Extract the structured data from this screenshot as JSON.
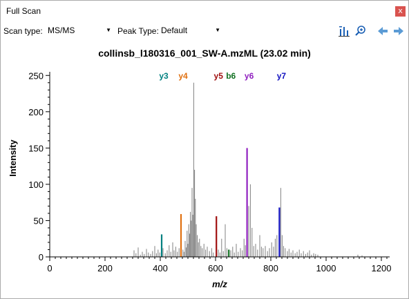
{
  "window": {
    "title": "Full Scan",
    "close_label": "x"
  },
  "toolbar": {
    "scan_type_label": "Scan type:",
    "scan_type_value": "MS/MS",
    "peak_type_label": "Peak Type:",
    "peak_type_value": "Default",
    "icons": [
      "bar-chart-icon",
      "zoom-icon",
      "back-arrow-icon",
      "forward-arrow-icon"
    ]
  },
  "chart_data": {
    "type": "bar",
    "title": "collinsb_l180316_001_SW-A.mzML  (23.02 min)",
    "xlabel": "m/z",
    "ylabel": "Intensity",
    "xlim": [
      0,
      1230
    ],
    "ylim": [
      0,
      255
    ],
    "x_ticks": [
      0,
      200,
      400,
      600,
      800,
      1000,
      1200
    ],
    "y_ticks": [
      0,
      50,
      100,
      150,
      200,
      250
    ],
    "grid": false,
    "colors": {
      "unannotated": "#808080",
      "axis": "#000000",
      "title": "#000000"
    },
    "annotated_peaks": [
      {
        "label": "y3",
        "mz": 405,
        "intensity": 31,
        "color": "#008080"
      },
      {
        "label": "y4",
        "mz": 475,
        "intensity": 59,
        "color": "#e07010"
      },
      {
        "label": "y5",
        "mz": 603,
        "intensity": 56,
        "color": "#a01010"
      },
      {
        "label": "b6",
        "mz": 648,
        "intensity": 10,
        "color": "#107020"
      },
      {
        "label": "y6",
        "mz": 714,
        "intensity": 150,
        "color": "#9020c0"
      },
      {
        "label": "y7",
        "mz": 831,
        "intensity": 68,
        "color": "#1010c0"
      }
    ],
    "peaks": [
      [
        305,
        9
      ],
      [
        312,
        5
      ],
      [
        320,
        13
      ],
      [
        328,
        3
      ],
      [
        335,
        7
      ],
      [
        342,
        4
      ],
      [
        350,
        11
      ],
      [
        357,
        6
      ],
      [
        365,
        4
      ],
      [
        372,
        8
      ],
      [
        380,
        15
      ],
      [
        386,
        5
      ],
      [
        392,
        10
      ],
      [
        398,
        6
      ],
      [
        410,
        12
      ],
      [
        418,
        5
      ],
      [
        425,
        9
      ],
      [
        432,
        16
      ],
      [
        438,
        7
      ],
      [
        445,
        20
      ],
      [
        450,
        9
      ],
      [
        456,
        14
      ],
      [
        462,
        7
      ],
      [
        468,
        12
      ],
      [
        482,
        10
      ],
      [
        486,
        7
      ],
      [
        490,
        22
      ],
      [
        494,
        13
      ],
      [
        497,
        36
      ],
      [
        500,
        18
      ],
      [
        503,
        45
      ],
      [
        506,
        32
      ],
      [
        509,
        62
      ],
      [
        512,
        50
      ],
      [
        515,
        95
      ],
      [
        518,
        58
      ],
      [
        521,
        240
      ],
      [
        524,
        120
      ],
      [
        527,
        80
      ],
      [
        530,
        45
      ],
      [
        534,
        30
      ],
      [
        538,
        20
      ],
      [
        542,
        25
      ],
      [
        547,
        15
      ],
      [
        552,
        12
      ],
      [
        558,
        18
      ],
      [
        564,
        10
      ],
      [
        570,
        14
      ],
      [
        578,
        8
      ],
      [
        586,
        12
      ],
      [
        592,
        6
      ],
      [
        610,
        10
      ],
      [
        616,
        6
      ],
      [
        622,
        25
      ],
      [
        628,
        8
      ],
      [
        635,
        45
      ],
      [
        641,
        12
      ],
      [
        655,
        9
      ],
      [
        662,
        14
      ],
      [
        668,
        6
      ],
      [
        675,
        18
      ],
      [
        682,
        7
      ],
      [
        690,
        12
      ],
      [
        697,
        9
      ],
      [
        703,
        25
      ],
      [
        708,
        16
      ],
      [
        720,
        70
      ],
      [
        726,
        100
      ],
      [
        732,
        40
      ],
      [
        738,
        15
      ],
      [
        745,
        18
      ],
      [
        752,
        10
      ],
      [
        760,
        30
      ],
      [
        766,
        14
      ],
      [
        772,
        12
      ],
      [
        780,
        15
      ],
      [
        788,
        8
      ],
      [
        795,
        12
      ],
      [
        803,
        20
      ],
      [
        810,
        14
      ],
      [
        816,
        25
      ],
      [
        822,
        30
      ],
      [
        836,
        95
      ],
      [
        841,
        30
      ],
      [
        846,
        15
      ],
      [
        852,
        12
      ],
      [
        860,
        8
      ],
      [
        866,
        11
      ],
      [
        873,
        6
      ],
      [
        880,
        9
      ],
      [
        888,
        5
      ],
      [
        895,
        7
      ],
      [
        903,
        10
      ],
      [
        910,
        5
      ],
      [
        918,
        8
      ],
      [
        926,
        4
      ],
      [
        933,
        6
      ],
      [
        940,
        9
      ],
      [
        947,
        3
      ],
      [
        955,
        5
      ],
      [
        962,
        4
      ],
      [
        970,
        3
      ],
      [
        1115,
        3
      ],
      [
        1130,
        2
      ]
    ]
  }
}
